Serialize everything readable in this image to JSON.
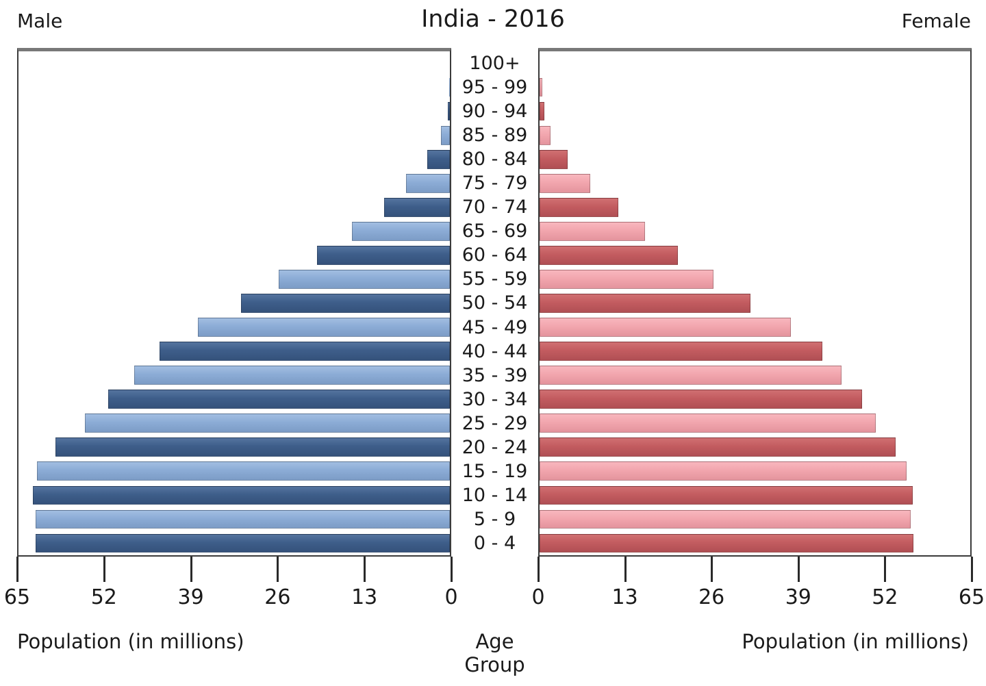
{
  "title": "India - 2016",
  "headers": {
    "male": "Male",
    "female": "Female"
  },
  "footer": {
    "left": "Population (in millions)",
    "center": "Age Group",
    "right": "Population (in millions)"
  },
  "axis": {
    "max": 65,
    "ticks": [
      0,
      13,
      26,
      39,
      52,
      65
    ]
  },
  "colors": {
    "male_dark": "#3e5e8a",
    "male_light": "#8cacd6",
    "female_dark": "#c35c60",
    "female_light": "#f2a6ae",
    "panel_border": "#3b3b3b",
    "panel_border_top": "#787878",
    "text": "#1a1a1a"
  },
  "chart_data": {
    "type": "bar",
    "subtype": "population-pyramid",
    "title": "India - 2016",
    "xlabel": "Population (in millions)",
    "ylabel": "Age Group",
    "xlim": [
      0,
      65
    ],
    "grid": false,
    "categories": [
      "100+",
      "95 - 99",
      "90 - 94",
      "85 - 89",
      "80 - 84",
      "75 - 79",
      "70 - 74",
      "65 - 69",
      "60 - 64",
      "55 - 59",
      "50 - 54",
      "45 - 49",
      "40 - 44",
      "35 - 39",
      "30 - 34",
      "25 - 29",
      "20 - 24",
      "15 - 19",
      "10 - 14",
      "5 - 9",
      "0 - 4"
    ],
    "series": [
      {
        "name": "Male",
        "side": "left",
        "values": [
          0.03,
          0.1,
          0.3,
          1.3,
          3.4,
          6.6,
          9.9,
          14.8,
          20.0,
          25.8,
          31.5,
          38.0,
          43.7,
          47.6,
          51.5,
          55.0,
          59.4,
          62.2,
          62.8,
          62.4,
          62.4
        ]
      },
      {
        "name": "Female",
        "side": "right",
        "values": [
          0.05,
          0.4,
          0.7,
          1.7,
          4.2,
          7.6,
          11.9,
          15.9,
          20.9,
          26.2,
          31.8,
          37.9,
          42.7,
          45.6,
          48.7,
          50.7,
          53.7,
          55.4,
          56.3,
          56.0,
          56.4
        ]
      }
    ]
  }
}
